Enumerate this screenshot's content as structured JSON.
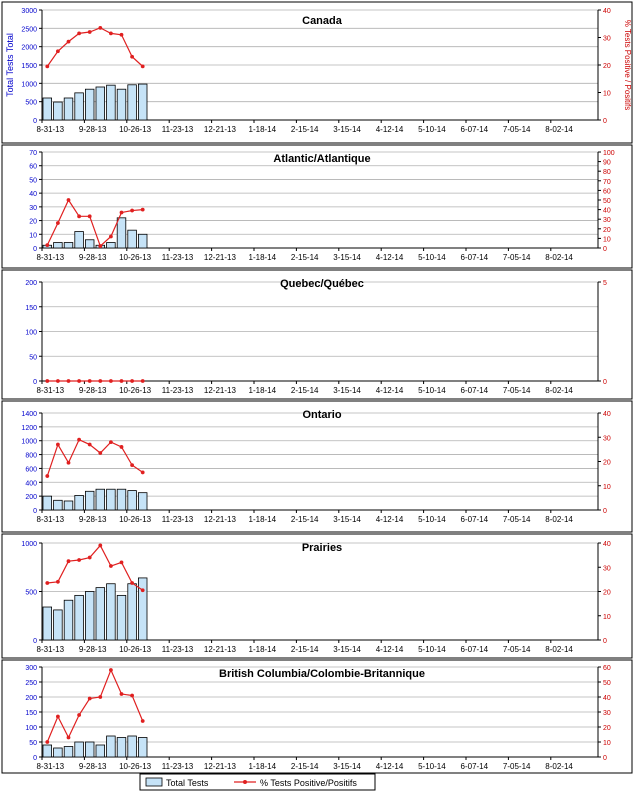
{
  "legend": {
    "bar_label": "Total Tests",
    "line_label": "% Tests Positive/Positifs"
  },
  "axis_titles": {
    "left": "Total Tests Total",
    "right": "% Tests Positive / Positifs"
  },
  "colors": {
    "bar_fill": "#c6e3f7",
    "bar_stroke": "#000000",
    "line": "#e02020",
    "left_axis": "#0000cc",
    "right_axis": "#cc0000",
    "grid": "#b0b0b0"
  },
  "chart_data": [
    {
      "type": "bar",
      "title": "Canada",
      "x_ticks": [
        "8-31-13",
        "9-28-13",
        "10-26-13",
        "11-23-13",
        "12-21-13",
        "1-18-14",
        "2-15-14",
        "3-15-14",
        "4-12-14",
        "5-10-14",
        "6-07-14",
        "7-05-14",
        "8-02-14"
      ],
      "ylim": [
        0,
        3000
      ],
      "y_ticks": [
        0,
        500,
        1000,
        1500,
        2000,
        2500,
        3000
      ],
      "y2lim": [
        0,
        40
      ],
      "y2_ticks": [
        0,
        10,
        20,
        30,
        40
      ],
      "grid": true,
      "series": [
        {
          "name": "Total Tests",
          "type": "bar",
          "axis": "left",
          "values": [
            600,
            490,
            600,
            740,
            840,
            900,
            950,
            840,
            960,
            980
          ]
        },
        {
          "name": "% Tests Positive/Positifs",
          "type": "line",
          "axis": "right",
          "values": [
            19.5,
            25,
            28.5,
            31.5,
            32,
            33.5,
            31.5,
            31,
            23,
            19.5
          ]
        }
      ]
    },
    {
      "type": "bar",
      "title": "Atlantic/Atlantique",
      "x_ticks": [
        "8-31-13",
        "9-28-13",
        "10-26-13",
        "11-23-13",
        "12-21-13",
        "1-18-14",
        "2-15-14",
        "3-15-14",
        "4-12-14",
        "5-10-14",
        "6-07-14",
        "7-05-14",
        "8-02-14"
      ],
      "ylim": [
        0,
        70
      ],
      "y_ticks": [
        0,
        10,
        20,
        30,
        40,
        50,
        60,
        70
      ],
      "y2lim": [
        0,
        100
      ],
      "y2_ticks": [
        0,
        10,
        20,
        30,
        40,
        50,
        60,
        70,
        80,
        90,
        100
      ],
      "grid": true,
      "series": [
        {
          "name": "Total Tests",
          "type": "bar",
          "axis": "left",
          "values": [
            2,
            4,
            4,
            12,
            6,
            2,
            4,
            22,
            13,
            10
          ]
        },
        {
          "name": "% Tests Positive/Positifs",
          "type": "line",
          "axis": "right",
          "values": [
            3,
            26,
            50,
            33,
            33,
            2,
            12,
            37,
            39,
            40
          ]
        }
      ]
    },
    {
      "type": "bar",
      "title": "Quebec/Québec",
      "x_ticks": [
        "8-31-13",
        "9-28-13",
        "10-26-13",
        "11-23-13",
        "12-21-13",
        "1-18-14",
        "2-15-14",
        "3-15-14",
        "4-12-14",
        "5-10-14",
        "6-07-14",
        "7-05-14",
        "8-02-14"
      ],
      "ylim": [
        0,
        200
      ],
      "y_ticks": [
        0,
        50,
        100,
        150,
        200
      ],
      "y2lim": [
        0,
        5
      ],
      "y2_ticks": [
        0,
        5
      ],
      "grid": true,
      "series": [
        {
          "name": "Total Tests",
          "type": "bar",
          "axis": "left",
          "values": [
            0,
            0,
            0,
            0,
            0,
            0,
            0,
            0,
            0,
            0
          ]
        },
        {
          "name": "% Tests Positive/Positifs",
          "type": "line",
          "axis": "right",
          "values": [
            0,
            0,
            0,
            0,
            0,
            0,
            0,
            0,
            0,
            0
          ]
        }
      ]
    },
    {
      "type": "bar",
      "title": "Ontario",
      "x_ticks": [
        "8-31-13",
        "9-28-13",
        "10-26-13",
        "11-23-13",
        "12-21-13",
        "1-18-14",
        "2-15-14",
        "3-15-14",
        "4-12-14",
        "5-10-14",
        "6-07-14",
        "7-05-14",
        "8-02-14"
      ],
      "ylim": [
        0,
        1400
      ],
      "y_ticks": [
        0,
        200,
        400,
        600,
        800,
        1000,
        1200,
        1400
      ],
      "y2lim": [
        0,
        40
      ],
      "y2_ticks": [
        0,
        10,
        20,
        30,
        40
      ],
      "grid": true,
      "series": [
        {
          "name": "Total Tests",
          "type": "bar",
          "axis": "left",
          "values": [
            200,
            140,
            130,
            210,
            270,
            300,
            300,
            300,
            280,
            250
          ]
        },
        {
          "name": "% Tests Positive/Positifs",
          "type": "line",
          "axis": "right",
          "values": [
            14,
            27,
            19.5,
            29,
            27,
            23.5,
            28,
            26,
            18.5,
            15.5
          ]
        }
      ]
    },
    {
      "type": "bar",
      "title": "Prairies",
      "x_ticks": [
        "8-31-13",
        "9-28-13",
        "10-26-13",
        "11-23-13",
        "12-21-13",
        "1-18-14",
        "2-15-14",
        "3-15-14",
        "4-12-14",
        "5-10-14",
        "6-07-14",
        "7-05-14",
        "8-02-14"
      ],
      "ylim": [
        0,
        1000
      ],
      "y_ticks": [
        0,
        500,
        1000
      ],
      "y2lim": [
        0,
        40
      ],
      "y2_ticks": [
        0,
        10,
        20,
        30,
        40
      ],
      "grid": true,
      "series": [
        {
          "name": "Total Tests",
          "type": "bar",
          "axis": "left",
          "values": [
            340,
            310,
            410,
            460,
            500,
            540,
            580,
            460,
            580,
            640
          ]
        },
        {
          "name": "% Tests Positive/Positifs",
          "type": "line",
          "axis": "right",
          "values": [
            23.5,
            24,
            32.5,
            33,
            34,
            39,
            30.5,
            32,
            23.5,
            20.5
          ]
        }
      ]
    },
    {
      "type": "bar",
      "title": "British Columbia/Colombie-Britannique",
      "x_ticks": [
        "8-31-13",
        "9-28-13",
        "10-26-13",
        "11-23-13",
        "12-21-13",
        "1-18-14",
        "2-15-14",
        "3-15-14",
        "4-12-14",
        "5-10-14",
        "6-07-14",
        "7-05-14",
        "8-02-14"
      ],
      "ylim": [
        0,
        300
      ],
      "y_ticks": [
        0,
        50,
        100,
        150,
        200,
        250,
        300
      ],
      "y2lim": [
        0,
        60
      ],
      "y2_ticks": [
        0,
        10,
        20,
        30,
        40,
        50,
        60
      ],
      "grid": true,
      "series": [
        {
          "name": "Total Tests",
          "type": "bar",
          "axis": "left",
          "values": [
            40,
            30,
            35,
            50,
            50,
            40,
            70,
            65,
            70,
            65
          ]
        },
        {
          "name": "% Tests Positive/Positifs",
          "type": "line",
          "axis": "right",
          "values": [
            10,
            27,
            13,
            28,
            39,
            40,
            58,
            42,
            41,
            24
          ]
        }
      ]
    }
  ]
}
